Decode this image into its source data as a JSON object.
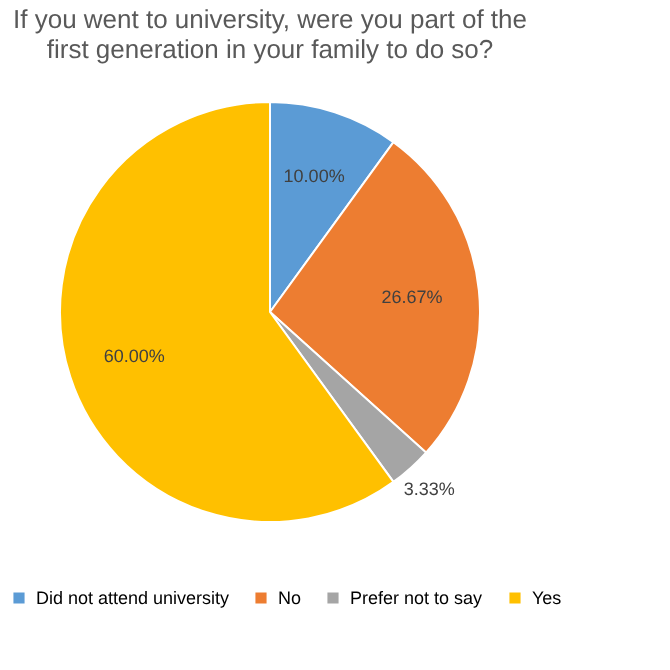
{
  "chart_data": {
    "type": "pie",
    "title": "If you went to university, were you part of the first generation in your family to do so?",
    "categories": [
      "Did not attend university",
      "No",
      "Prefer not to say",
      "Yes"
    ],
    "values": [
      10,
      26.67,
      3.33,
      60
    ],
    "value_labels": [
      "10.00%",
      "26.67%",
      "3.33%",
      "60.00%"
    ],
    "colors": [
      "#5b9bd5",
      "#ed7d31",
      "#a5a5a5",
      "#ffc000"
    ],
    "legend": "bottom"
  }
}
